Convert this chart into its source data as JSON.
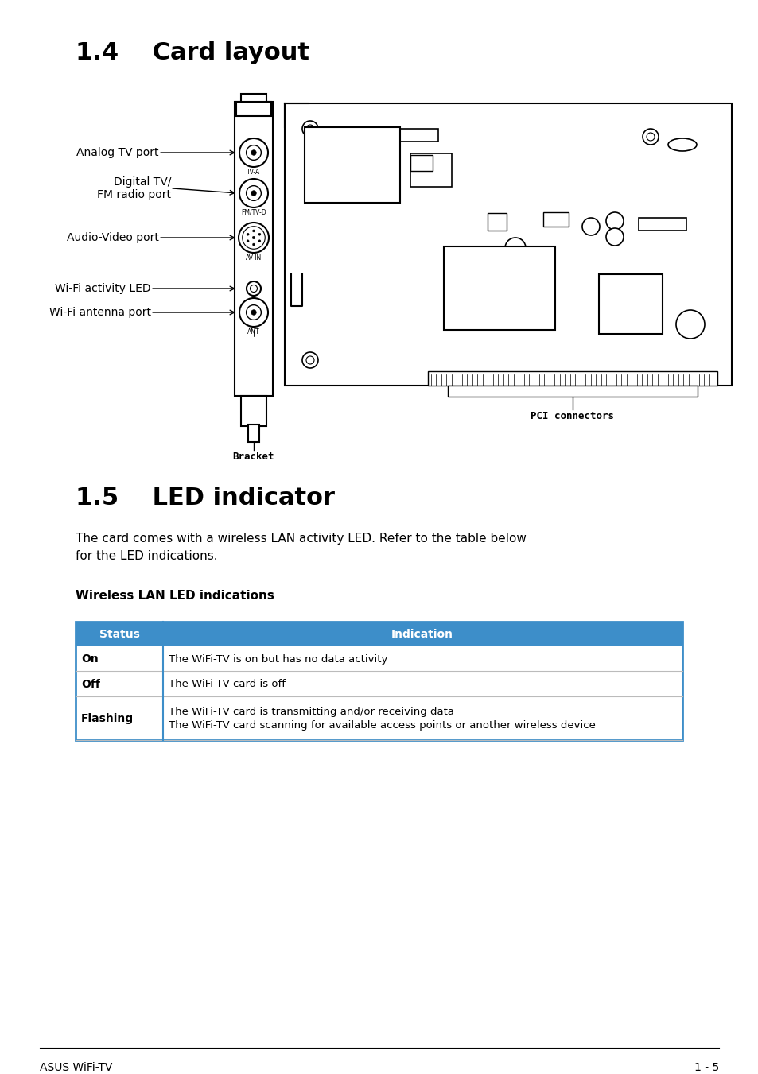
{
  "page_bg": "#ffffff",
  "section1_title": "1.4    Card layout",
  "section2_title": "1.5    LED indicator",
  "section2_body": "The card comes with a wireless LAN activity LED. Refer to the table below\nfor the LED indications.",
  "table_title": "Wireless LAN LED indications",
  "table_header": [
    "Status",
    "Indication"
  ],
  "table_header_bg": "#3d8ec9",
  "table_header_color": "#ffffff",
  "table_rows": [
    [
      "On",
      "The WiFi-TV is on but has no data activity"
    ],
    [
      "Off",
      "The WiFi-TV card is off"
    ],
    [
      "Flashing",
      "The WiFi-TV card is transmitting and/or receiving data\nThe WiFi-TV card scanning for available access points or another wireless device"
    ]
  ],
  "table_border_color": "#3d8ec9",
  "footer_left": "ASUS WiFi-TV",
  "footer_right": "1 - 5",
  "bracket_label": "Bracket",
  "pci_label": "PCI connectors"
}
